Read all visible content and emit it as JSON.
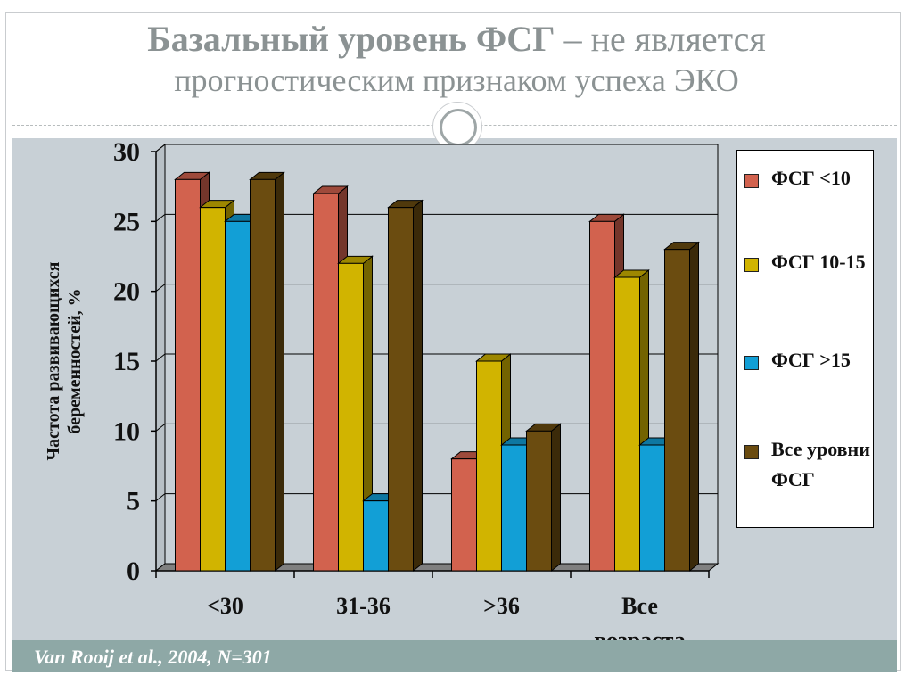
{
  "slide": {
    "title_bold": "Базальный уровень ФСГ",
    "title_rest": " – не является",
    "title_line2": "прогностическим признаком успеха ЭКО",
    "footer": "Van Rooij et al., 2004, N=301"
  },
  "chart_data": {
    "type": "bar",
    "ylabel": "Частота развивающихся беременностей, %",
    "xlabel": "",
    "ylim": [
      0,
      30
    ],
    "yticks": [
      "0",
      "5",
      "10",
      "15",
      "20",
      "25",
      "30"
    ],
    "categories": [
      "<30",
      "31-36",
      ">36",
      "Все возраста"
    ],
    "series": [
      {
        "name": "ФСГ <10",
        "color": "#d2624e",
        "values": [
          28,
          27,
          8,
          25
        ]
      },
      {
        "name": "ФСГ 10-15",
        "color": "#d1b400",
        "values": [
          26,
          22,
          15,
          21
        ]
      },
      {
        "name": "ФСГ >15",
        "color": "#129fd6",
        "values": [
          25,
          5,
          9,
          9
        ]
      },
      {
        "name": "Все уровни ФСГ",
        "color": "#6b4c10",
        "values": [
          28,
          26,
          10,
          23
        ]
      }
    ],
    "grid": true,
    "legend_position": "right"
  }
}
